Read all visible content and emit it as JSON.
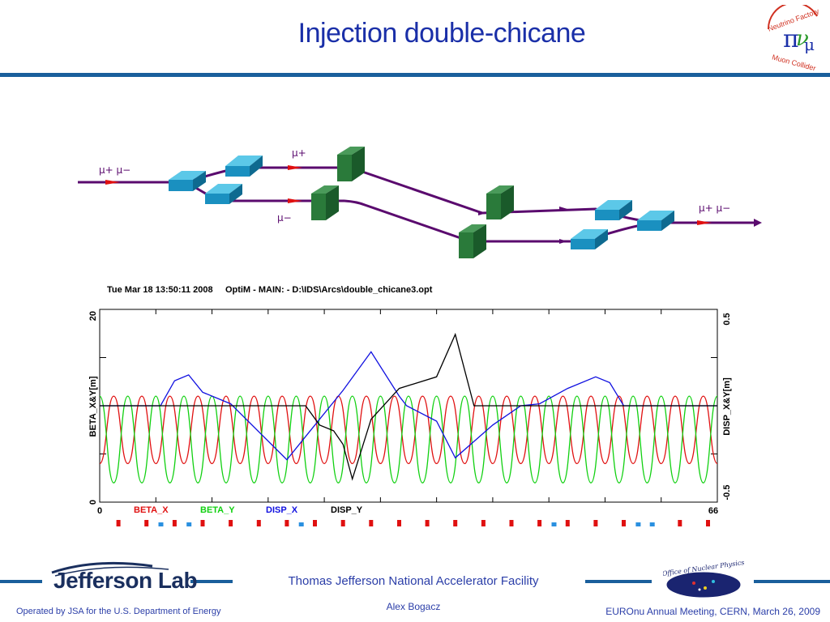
{
  "slide": {
    "title": "Injection double-chicane",
    "facility": "Thomas Jefferson National Accelerator Facility",
    "author": "Alex Bogacz",
    "footer_left": "Operated by JSA for the U.S. Department of Energy",
    "footer_right": "EUROnu Annual Meeting, CERN, March 26, 2009",
    "jlab_logo_text": "Jefferson Lab",
    "nf_logo_text": "Neutrino Factory Muon Collider",
    "doe_logo_text": "Office of Nuclear Physics"
  },
  "schematic": {
    "label_left": "μ+ μ−",
    "label_top": "μ+",
    "label_bottom": "μ−",
    "label_right": "μ+ μ−"
  },
  "plot": {
    "header": "Tue Mar 18 13:50:11 2008     OptiM - MAIN: - D:\\IDS\\Arcs\\double_chicane3.opt",
    "ylabel_left": "BETA_X&Y[m]",
    "ylabel_right": "DISP_X&Y[m]",
    "x_min_label": "0",
    "x_max_label": "66",
    "y_left_top": "20",
    "y_left_bottom": "0",
    "y_right_top": "0.5",
    "y_right_bottom": "-0.5",
    "legend": [
      {
        "label": "BETA_X",
        "color": "#e01010"
      },
      {
        "label": "BETA_Y",
        "color": "#10d010"
      },
      {
        "label": "DISP_X",
        "color": "#1010e0"
      },
      {
        "label": "DISP_Y",
        "color": "#000000"
      }
    ]
  },
  "chart_data": {
    "type": "line",
    "x_range": [
      0,
      66
    ],
    "y_left_range": [
      0,
      20
    ],
    "y_right_range": [
      -0.5,
      0.5
    ],
    "xlabel": "",
    "ylabel": "BETA_X&Y[m]",
    "y2label": "DISP_X&Y[m]",
    "grid": false,
    "series": [
      {
        "name": "BETA_X",
        "axis": "left",
        "color": "#e01010",
        "x": [
          0,
          1.5,
          3,
          4.5,
          6,
          7.5,
          9,
          10.5,
          12,
          13.5,
          15,
          16.5,
          18,
          19.5,
          21,
          22.5,
          24,
          25.5,
          27,
          28.5,
          30,
          31.5,
          33,
          34.5,
          36,
          37.5,
          39,
          40.5,
          42,
          43.5,
          45,
          46.5,
          48,
          49.5,
          51,
          52.5,
          54,
          55.5,
          57,
          58.5,
          60,
          61.5,
          63,
          64.5,
          66
        ],
        "y": [
          4,
          11,
          4,
          11,
          4,
          11,
          4,
          11,
          4,
          11,
          4,
          11,
          4,
          11,
          4,
          11,
          4,
          11,
          4,
          11,
          4,
          11,
          4,
          11,
          4,
          11,
          4,
          11,
          4,
          11,
          4,
          11,
          4,
          11,
          4,
          11,
          4,
          11,
          4,
          11,
          4,
          11,
          4,
          11,
          4
        ]
      },
      {
        "name": "BETA_Y",
        "axis": "left",
        "color": "#10d010",
        "x": [
          0,
          1.5,
          3,
          4.5,
          6,
          7.5,
          9,
          10.5,
          12,
          13.5,
          15,
          16.5,
          18,
          19.5,
          21,
          22.5,
          24,
          25.5,
          27,
          28.5,
          30,
          31.5,
          33,
          34.5,
          36,
          37.5,
          39,
          40.5,
          42,
          43.5,
          45,
          46.5,
          48,
          49.5,
          51,
          52.5,
          54,
          55.5,
          57,
          58.5,
          60,
          61.5,
          63,
          64.5,
          66
        ],
        "y": [
          11,
          2,
          11,
          2,
          11,
          2,
          11,
          2,
          11,
          2,
          11,
          2,
          11,
          2,
          11,
          2,
          11,
          2,
          11,
          2,
          11,
          2,
          11,
          2,
          11,
          2,
          11,
          2,
          11,
          2,
          11,
          2,
          11,
          2,
          11,
          2,
          11,
          2,
          11,
          2,
          11,
          2,
          11,
          2,
          11
        ]
      },
      {
        "name": "DISP_X",
        "axis": "right",
        "color": "#1010e0",
        "x": [
          0,
          6.5,
          8,
          9.5,
          11,
          14,
          20,
          23,
          26,
          29,
          32,
          32.8,
          36,
          38,
          42,
          45,
          47,
          50,
          53,
          54.5,
          56,
          58,
          60,
          66
        ],
        "y": [
          0,
          0,
          0.13,
          0.16,
          0.07,
          0.01,
          -0.28,
          -0.1,
          0.08,
          0.28,
          0.05,
          0.0,
          -0.08,
          -0.27,
          -0.1,
          0.0,
          0.01,
          0.09,
          0.15,
          0.12,
          0.0,
          0.0,
          0.0,
          0.0
        ]
      },
      {
        "name": "DISP_Y",
        "axis": "right",
        "color": "#000000",
        "x": [
          0,
          22,
          23.5,
          25,
          26,
          27,
          29,
          32,
          36,
          38,
          40,
          46,
          50,
          66
        ],
        "y": [
          0,
          0,
          -0.1,
          -0.13,
          -0.2,
          -0.38,
          -0.07,
          0.09,
          0.15,
          0.37,
          0.0,
          0.0,
          0.0,
          0.0
        ]
      }
    ]
  }
}
